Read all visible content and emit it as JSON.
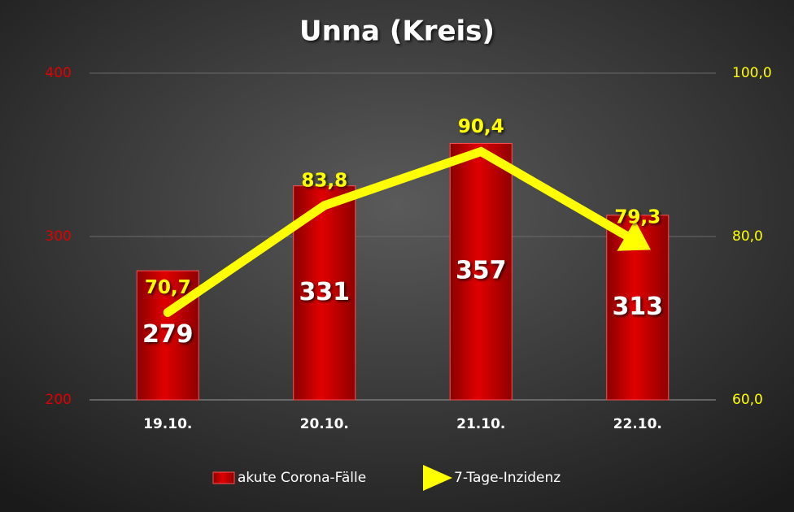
{
  "chart_data": {
    "type": "bar",
    "title": "Unna (Kreis)",
    "categories": [
      "19.10.",
      "20.10.",
      "21.10.",
      "22.10."
    ],
    "series": [
      {
        "name": "akute Corona-Fälle",
        "color": "#d10000",
        "values": [
          279,
          331,
          357,
          313
        ]
      },
      {
        "name": "7-Tage-Inzidenz",
        "type": "line",
        "axis": "y2",
        "color": "#ffff00",
        "values": [
          70.7,
          83.8,
          90.4,
          79.3
        ],
        "value_labels": [
          "70,7",
          "83,8",
          "90,4",
          "79,3"
        ]
      }
    ],
    "ylim": [
      200,
      400
    ],
    "yticks": [
      200,
      300,
      400
    ],
    "y2lim": [
      60,
      100
    ],
    "y2ticks": [
      {
        "value": 60,
        "label": "60,0"
      },
      {
        "value": 80,
        "label": "80,0"
      },
      {
        "value": 100,
        "label": "100,0"
      }
    ],
    "grid": true,
    "legend": "bottom"
  }
}
